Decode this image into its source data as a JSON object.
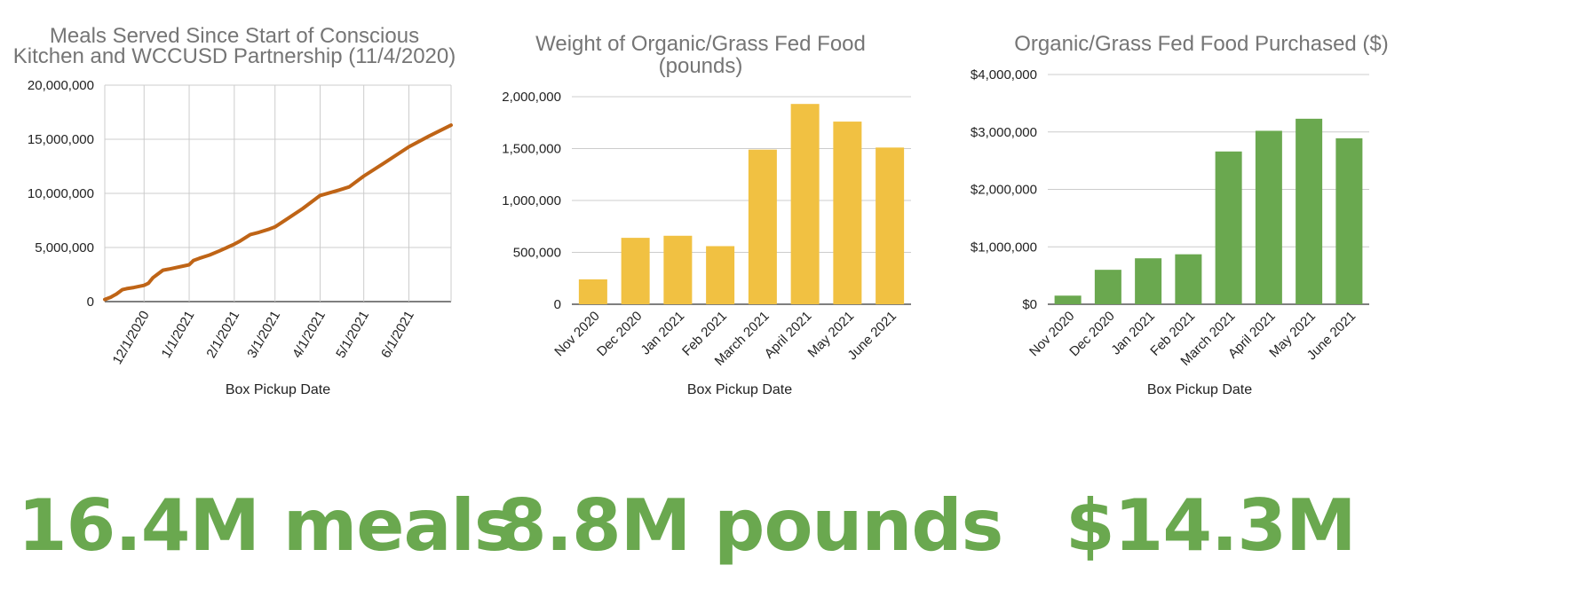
{
  "colors": {
    "line": "#bf6416",
    "bars_weight": "#f1c142",
    "bars_dollars": "#6aa84f",
    "stat": "#6aa84f",
    "grid": "#cccccc",
    "title": "#757575",
    "text": "#222222"
  },
  "chart_data": [
    {
      "type": "line",
      "title_lines": [
        "Meals Served Since Start of Conscious",
        "Kitchen and WCCUSD Partnership (11/4/2020)"
      ],
      "xlabel": "Box Pickup Date",
      "ylabel": "",
      "ylim": [
        0,
        20000000
      ],
      "yticks": [
        0,
        5000000,
        10000000,
        15000000,
        20000000
      ],
      "ytick_labels": [
        "0",
        "5,000,000",
        "10,000,000",
        "15,000,000",
        "20,000,000"
      ],
      "xlim": [
        "2020-11-04",
        "2021-06-30"
      ],
      "xticks": [
        "2020-12-01",
        "2021-01-01",
        "2021-02-01",
        "2021-03-01",
        "2021-04-01",
        "2021-05-01",
        "2021-06-01"
      ],
      "xtick_labels": [
        "12/1/2020",
        "1/1/2021",
        "2/1/2021",
        "3/1/2021",
        "4/1/2021",
        "5/1/2021",
        "6/1/2021"
      ],
      "grid": true,
      "series": [
        {
          "x": [
            "2020-11-04",
            "2020-11-08",
            "2020-11-12",
            "2020-11-16",
            "2020-11-19",
            "2020-11-24",
            "2020-12-01",
            "2020-12-04",
            "2020-12-07",
            "2020-12-10",
            "2020-12-14",
            "2020-12-18",
            "2021-01-01",
            "2021-01-04",
            "2021-01-08",
            "2021-01-15",
            "2021-01-22",
            "2021-02-01",
            "2021-02-05",
            "2021-02-12",
            "2021-02-18",
            "2021-02-25",
            "2021-03-01",
            "2021-03-10",
            "2021-03-20",
            "2021-04-01",
            "2021-04-14",
            "2021-04-21",
            "2021-05-01",
            "2021-05-15",
            "2021-06-01",
            "2021-06-15",
            "2021-06-30"
          ],
          "values": [
            200000,
            400000,
            700000,
            1100000,
            1200000,
            1300000,
            1500000,
            1700000,
            2200000,
            2500000,
            2900000,
            3000000,
            3400000,
            3800000,
            4000000,
            4300000,
            4700000,
            5300000,
            5600000,
            6200000,
            6400000,
            6700000,
            6900000,
            7700000,
            8600000,
            9800000,
            10300000,
            10600000,
            11600000,
            12800000,
            14300000,
            15300000,
            16300000
          ]
        }
      ]
    },
    {
      "type": "bar",
      "title_lines": [
        "Weight of Organic/Grass Fed Food",
        "(pounds)"
      ],
      "xlabel": "Box Pickup Date",
      "ylabel": "",
      "ylim": [
        0,
        2000000
      ],
      "yticks": [
        0,
        500000,
        1000000,
        1500000,
        2000000
      ],
      "ytick_labels": [
        "0",
        "500,000",
        "1,000,000",
        "1,500,000",
        "2,000,000"
      ],
      "categories": [
        "Nov 2020",
        "Dec 2020",
        "Jan 2021",
        "Feb 2021",
        "March 2021",
        "April 2021",
        "May 2021",
        "June 2021"
      ],
      "values": [
        240000,
        640000,
        660000,
        560000,
        1490000,
        1930000,
        1760000,
        1510000
      ],
      "grid": true
    },
    {
      "type": "bar",
      "title_lines": [
        "Organic/Grass Fed Food Purchased ($)"
      ],
      "xlabel": "Box Pickup Date",
      "ylabel": "",
      "ylim": [
        0,
        4000000
      ],
      "yticks": [
        0,
        1000000,
        2000000,
        3000000,
        4000000
      ],
      "ytick_labels": [
        "$0",
        "$1,000,000",
        "$2,000,000",
        "$3,000,000",
        "$4,000,000"
      ],
      "categories": [
        "Nov 2020",
        "Dec 2020",
        "Jan 2021",
        "Feb 2021",
        "March 2021",
        "April 2021",
        "May 2021",
        "June 2021"
      ],
      "values": [
        150000,
        600000,
        800000,
        870000,
        2660000,
        3020000,
        3230000,
        2890000
      ],
      "grid": true
    }
  ],
  "stats": [
    "16.4M meals",
    "8.8M pounds",
    "$14.3M"
  ]
}
